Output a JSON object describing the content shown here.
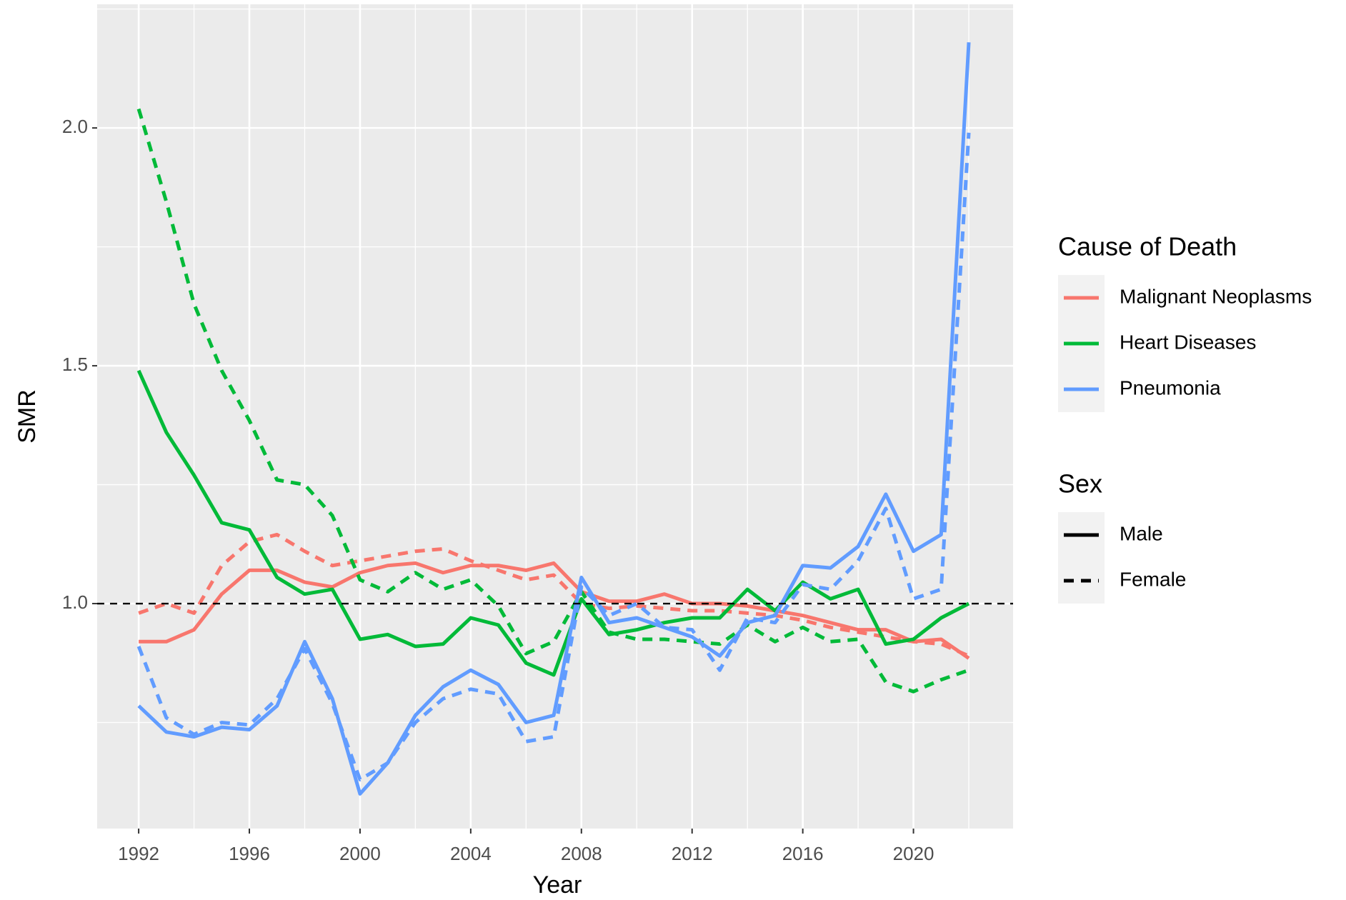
{
  "chart_data": {
    "type": "line",
    "x_label": "Year",
    "y_label": "SMR",
    "x": [
      1992,
      1993,
      1994,
      1995,
      1996,
      1997,
      1998,
      1999,
      2000,
      2001,
      2002,
      2003,
      2004,
      2005,
      2006,
      2007,
      2008,
      2009,
      2010,
      2011,
      2012,
      2013,
      2014,
      2015,
      2016,
      2017,
      2018,
      2019,
      2020,
      2021,
      2022
    ],
    "series": [
      {
        "color": "#f8766d",
        "linetype": "solid",
        "values": [
          0.92,
          0.92,
          0.945,
          1.02,
          1.07,
          1.07,
          1.045,
          1.035,
          1.065,
          1.08,
          1.085,
          1.065,
          1.08,
          1.08,
          1.07,
          1.085,
          1.025,
          1.005,
          1.005,
          1.02,
          1.0,
          1.0,
          0.995,
          0.985,
          0.975,
          0.96,
          0.945,
          0.945,
          0.92,
          0.925,
          0.885
        ]
      },
      {
        "color": "#f8766d",
        "linetype": "dashed",
        "values": [
          0.98,
          1.0,
          0.98,
          1.08,
          1.13,
          1.145,
          1.11,
          1.08,
          1.09,
          1.1,
          1.11,
          1.115,
          1.09,
          1.07,
          1.05,
          1.06,
          1.0,
          0.99,
          0.995,
          0.99,
          0.985,
          0.985,
          0.98,
          0.975,
          0.965,
          0.95,
          0.94,
          0.93,
          0.92,
          0.915,
          0.89
        ]
      },
      {
        "color": "#00ba38",
        "linetype": "solid",
        "values": [
          1.49,
          1.36,
          1.27,
          1.17,
          1.155,
          1.055,
          1.02,
          1.03,
          0.925,
          0.935,
          0.91,
          0.915,
          0.97,
          0.955,
          0.875,
          0.85,
          1.01,
          0.935,
          0.945,
          0.96,
          0.97,
          0.97,
          1.03,
          0.985,
          1.045,
          1.01,
          1.03,
          0.915,
          0.925,
          0.97,
          1.0
        ]
      },
      {
        "color": "#00ba38",
        "linetype": "dashed",
        "values": [
          2.04,
          1.845,
          1.63,
          1.49,
          1.385,
          1.26,
          1.25,
          1.185,
          1.05,
          1.025,
          1.065,
          1.03,
          1.05,
          0.995,
          0.895,
          0.92,
          1.025,
          0.94,
          0.925,
          0.925,
          0.92,
          0.915,
          0.955,
          0.92,
          0.95,
          0.92,
          0.925,
          0.835,
          0.815,
          0.84,
          0.86
        ]
      },
      {
        "color": "#619cff",
        "linetype": "solid",
        "values": [
          0.785,
          0.73,
          0.72,
          0.74,
          0.735,
          0.785,
          0.92,
          0.8,
          0.6,
          0.665,
          0.765,
          0.825,
          0.86,
          0.83,
          0.75,
          0.765,
          1.055,
          0.96,
          0.97,
          0.95,
          0.93,
          0.89,
          0.96,
          0.975,
          1.08,
          1.075,
          1.12,
          1.23,
          1.11,
          1.145,
          2.18
        ]
      },
      {
        "color": "#619cff",
        "linetype": "dashed",
        "values": [
          0.91,
          0.76,
          0.725,
          0.75,
          0.745,
          0.8,
          0.905,
          0.79,
          0.63,
          0.665,
          0.75,
          0.8,
          0.82,
          0.81,
          0.71,
          0.72,
          1.035,
          0.975,
          1.0,
          0.95,
          0.945,
          0.86,
          0.97,
          0.96,
          1.04,
          1.03,
          1.09,
          1.2,
          1.01,
          1.03,
          1.99
        ]
      }
    ],
    "xlim": [
      1990.5,
      2023.6
    ],
    "xticks": [
      1992,
      1996,
      2000,
      2004,
      2008,
      2012,
      2016,
      2020
    ],
    "ylim": [
      0.527,
      2.26
    ],
    "yticks": [
      {
        "value": 1,
        "label": "1.0"
      },
      1.5,
      {
        "value": 2,
        "label": "2.0"
      }
    ],
    "grid": true,
    "minor_grid": true,
    "reference_line": {
      "value": 1,
      "color": "#000000",
      "linetype": "dashed"
    },
    "legend": {
      "position": "right",
      "color": {
        "title": "Cause of Death",
        "entries": [
          {
            "label": "Malignant Neoplasms",
            "color": "#f8766d"
          },
          {
            "label": "Heart Diseases",
            "color": "#00ba38"
          },
          {
            "label": "Pneumonia",
            "color": "#619cff"
          }
        ]
      },
      "linetype": {
        "title": "Sex",
        "entries": [
          {
            "label": "Male",
            "linetype": "solid"
          },
          {
            "label": "Female",
            "linetype": "dashed"
          }
        ]
      }
    }
  }
}
